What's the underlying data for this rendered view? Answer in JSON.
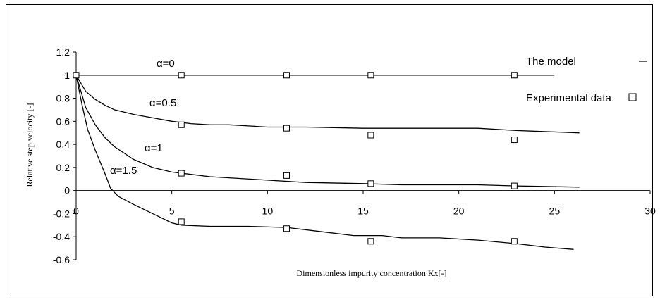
{
  "chart_data": {
    "type": "scatter",
    "title": "",
    "xlabel": "Dimensionless impurity concentration Kx[-]",
    "ylabel": "Relative step velocity [-]",
    "xlim": [
      0,
      30
    ],
    "ylim": [
      -0.6,
      1.2
    ],
    "x_ticks": [
      "0",
      "5",
      "10",
      "15",
      "20",
      "25",
      "30"
    ],
    "y_ticks": [
      "1.2",
      "1",
      "0.8",
      "0.6",
      "0.4",
      "0.2",
      "0",
      "-0.2",
      "-0.4",
      "-0.6"
    ],
    "grid": false,
    "legend_position": "top-right",
    "legend": {
      "model_label": "The model",
      "experimental_label": "Experimental data"
    },
    "model_curves": [
      {
        "label": "α=0",
        "points": [
          [
            0,
            1.0
          ],
          [
            5,
            1.0
          ],
          [
            10,
            1.0
          ],
          [
            15,
            1.0
          ],
          [
            20,
            1.0
          ],
          [
            25,
            1.0
          ]
        ]
      },
      {
        "label": "α=0.5",
        "points": [
          [
            0,
            1.0
          ],
          [
            0.5,
            0.86
          ],
          [
            1,
            0.79
          ],
          [
            1.5,
            0.74
          ],
          [
            2,
            0.7
          ],
          [
            3,
            0.66
          ],
          [
            4,
            0.63
          ],
          [
            5,
            0.6
          ],
          [
            6,
            0.58
          ],
          [
            7,
            0.57
          ],
          [
            8,
            0.57
          ],
          [
            9,
            0.56
          ],
          [
            10,
            0.55
          ],
          [
            12,
            0.55
          ],
          [
            15,
            0.54
          ],
          [
            18,
            0.54
          ],
          [
            21,
            0.54
          ],
          [
            23,
            0.52
          ],
          [
            26.3,
            0.5
          ]
        ]
      },
      {
        "label": "α=1",
        "points": [
          [
            0,
            1.0
          ],
          [
            0.5,
            0.72
          ],
          [
            1,
            0.57
          ],
          [
            1.5,
            0.46
          ],
          [
            2,
            0.38
          ],
          [
            3,
            0.27
          ],
          [
            4,
            0.2
          ],
          [
            5,
            0.16
          ],
          [
            6,
            0.14
          ],
          [
            7,
            0.12
          ],
          [
            8,
            0.11
          ],
          [
            10,
            0.09
          ],
          [
            12,
            0.07
          ],
          [
            15,
            0.06
          ],
          [
            17,
            0.05
          ],
          [
            21,
            0.05
          ],
          [
            23,
            0.04
          ],
          [
            26.3,
            0.03
          ]
        ]
      },
      {
        "label": "α=1.5",
        "points": [
          [
            0,
            1.0
          ],
          [
            0.3,
            0.75
          ],
          [
            0.6,
            0.53
          ],
          [
            1,
            0.35
          ],
          [
            1.5,
            0.15
          ],
          [
            1.8,
            0.02
          ],
          [
            2.2,
            -0.05
          ],
          [
            3,
            -0.12
          ],
          [
            4,
            -0.2
          ],
          [
            5,
            -0.28
          ],
          [
            5.5,
            -0.3
          ],
          [
            7,
            -0.31
          ],
          [
            9,
            -0.31
          ],
          [
            11,
            -0.32
          ],
          [
            13,
            -0.36
          ],
          [
            14.5,
            -0.39
          ],
          [
            16,
            -0.39
          ],
          [
            17,
            -0.41
          ],
          [
            19,
            -0.41
          ],
          [
            21,
            -0.43
          ],
          [
            23,
            -0.46
          ],
          [
            24.5,
            -0.49
          ],
          [
            26,
            -0.51
          ]
        ]
      }
    ],
    "experimental_data": [
      {
        "x": 0,
        "y": 1.0
      },
      {
        "x": 5.5,
        "y": 1.0
      },
      {
        "x": 11,
        "y": 1.0
      },
      {
        "x": 15.4,
        "y": 1.0
      },
      {
        "x": 22.9,
        "y": 1.0
      },
      {
        "x": 5.5,
        "y": 0.57
      },
      {
        "x": 11,
        "y": 0.54
      },
      {
        "x": 15.4,
        "y": 0.48
      },
      {
        "x": 22.9,
        "y": 0.44
      },
      {
        "x": 5.5,
        "y": 0.15
      },
      {
        "x": 11,
        "y": 0.13
      },
      {
        "x": 15.4,
        "y": 0.06
      },
      {
        "x": 22.9,
        "y": 0.04
      },
      {
        "x": 5.5,
        "y": -0.27
      },
      {
        "x": 11,
        "y": -0.33
      },
      {
        "x": 15.4,
        "y": -0.44
      },
      {
        "x": 22.9,
        "y": -0.44
      }
    ]
  }
}
